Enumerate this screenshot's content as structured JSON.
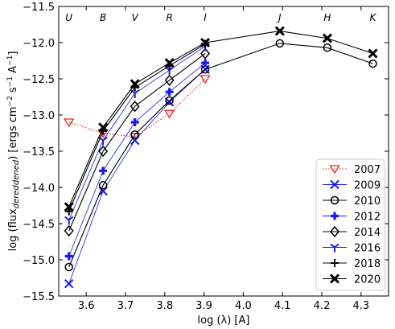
{
  "chart_data": {
    "type": "line",
    "xlabel": "log (λ) [A]",
    "ylabel_parts": {
      "pre": "log (flux",
      "sub": "dereddened",
      "post": ") [ergs cm",
      "sup1": "−2",
      "mid": " s",
      "sup2": "−1",
      "end": " A",
      "sup3": "−1",
      "close": "]"
    },
    "xlim": [
      3.53,
      4.37
    ],
    "ylim": [
      -15.5,
      -11.5
    ],
    "xticks": [
      3.6,
      3.7,
      3.8,
      3.9,
      4.0,
      4.1,
      4.2,
      4.3
    ],
    "xtick_labels": [
      "3.6",
      "3.7",
      "3.8",
      "3.9",
      "4.0",
      "4.1",
      "4.2",
      "4.3"
    ],
    "yticks": [
      -15.5,
      -15.0,
      -14.5,
      -14.0,
      -13.5,
      -13.0,
      -12.5,
      -12.0,
      -11.5
    ],
    "ytick_labels": [
      "−15.5",
      "−15.0",
      "−14.5",
      "−14.0",
      "−13.5",
      "−13.0",
      "−12.5",
      "−12.0",
      "−11.5"
    ],
    "bands": [
      {
        "label": "U",
        "x": 3.556
      },
      {
        "label": "B",
        "x": 3.643
      },
      {
        "label": "V",
        "x": 3.724
      },
      {
        "label": "R",
        "x": 3.812
      },
      {
        "label": "I",
        "x": 3.903
      },
      {
        "label": "J",
        "x": 4.093
      },
      {
        "label": "H",
        "x": 4.214
      },
      {
        "label": "K",
        "x": 4.33
      }
    ],
    "legend_position": "lower-right",
    "series": [
      {
        "name": "2007",
        "color": "#ee2222",
        "marker": "triangle-down",
        "line": "dotted",
        "x": [
          3.556,
          3.643,
          3.724,
          3.812,
          3.903
        ],
        "y": [
          -13.1,
          -13.25,
          -13.3,
          -12.98,
          -12.5
        ]
      },
      {
        "name": "2009",
        "color": "#1a1aee",
        "marker": "x",
        "line": "solid",
        "x": [
          3.556,
          3.643,
          3.724,
          3.812,
          3.903
        ],
        "y": [
          -15.33,
          -14.05,
          -13.35,
          -12.82,
          -12.37
        ]
      },
      {
        "name": "2010",
        "color": "#000000",
        "marker": "circle",
        "line": "solid",
        "x": [
          3.556,
          3.643,
          3.724,
          3.812,
          3.903,
          4.093,
          4.214,
          4.33
        ],
        "y": [
          -15.1,
          -13.97,
          -13.27,
          -12.8,
          -12.37,
          -12.01,
          -12.07,
          -12.29
        ]
      },
      {
        "name": "2012",
        "color": "#1a1aee",
        "marker": "plus-bold",
        "line": "solid",
        "x": [
          3.556,
          3.643,
          3.724,
          3.812,
          3.903
        ],
        "y": [
          -14.95,
          -13.77,
          -13.1,
          -12.68,
          -12.28
        ]
      },
      {
        "name": "2014",
        "color": "#000000",
        "marker": "diamond",
        "line": "solid",
        "x": [
          3.556,
          3.643,
          3.724,
          3.812,
          3.903
        ],
        "y": [
          -14.6,
          -13.5,
          -12.88,
          -12.52,
          -12.15
        ]
      },
      {
        "name": "2016",
        "color": "#1a1aee",
        "marker": "tri-down",
        "line": "solid",
        "x": [
          3.556,
          3.643,
          3.724,
          3.812,
          3.903
        ],
        "y": [
          -14.45,
          -13.35,
          -12.7,
          -12.38,
          -12.05
        ]
      },
      {
        "name": "2018",
        "color": "#000000",
        "marker": "plus",
        "line": "solid",
        "x": [
          3.556,
          3.643,
          3.724,
          3.812,
          3.903
        ],
        "y": [
          -14.33,
          -13.22,
          -12.62,
          -12.32,
          -12.02
        ]
      },
      {
        "name": "2020",
        "color": "#000000",
        "marker": "x-bold",
        "line": "solid",
        "x": [
          3.556,
          3.643,
          3.724,
          3.812,
          3.903,
          4.093,
          4.214,
          4.33
        ],
        "y": [
          -14.27,
          -13.17,
          -12.57,
          -12.28,
          -12.0,
          -11.84,
          -11.94,
          -12.15
        ]
      }
    ]
  }
}
